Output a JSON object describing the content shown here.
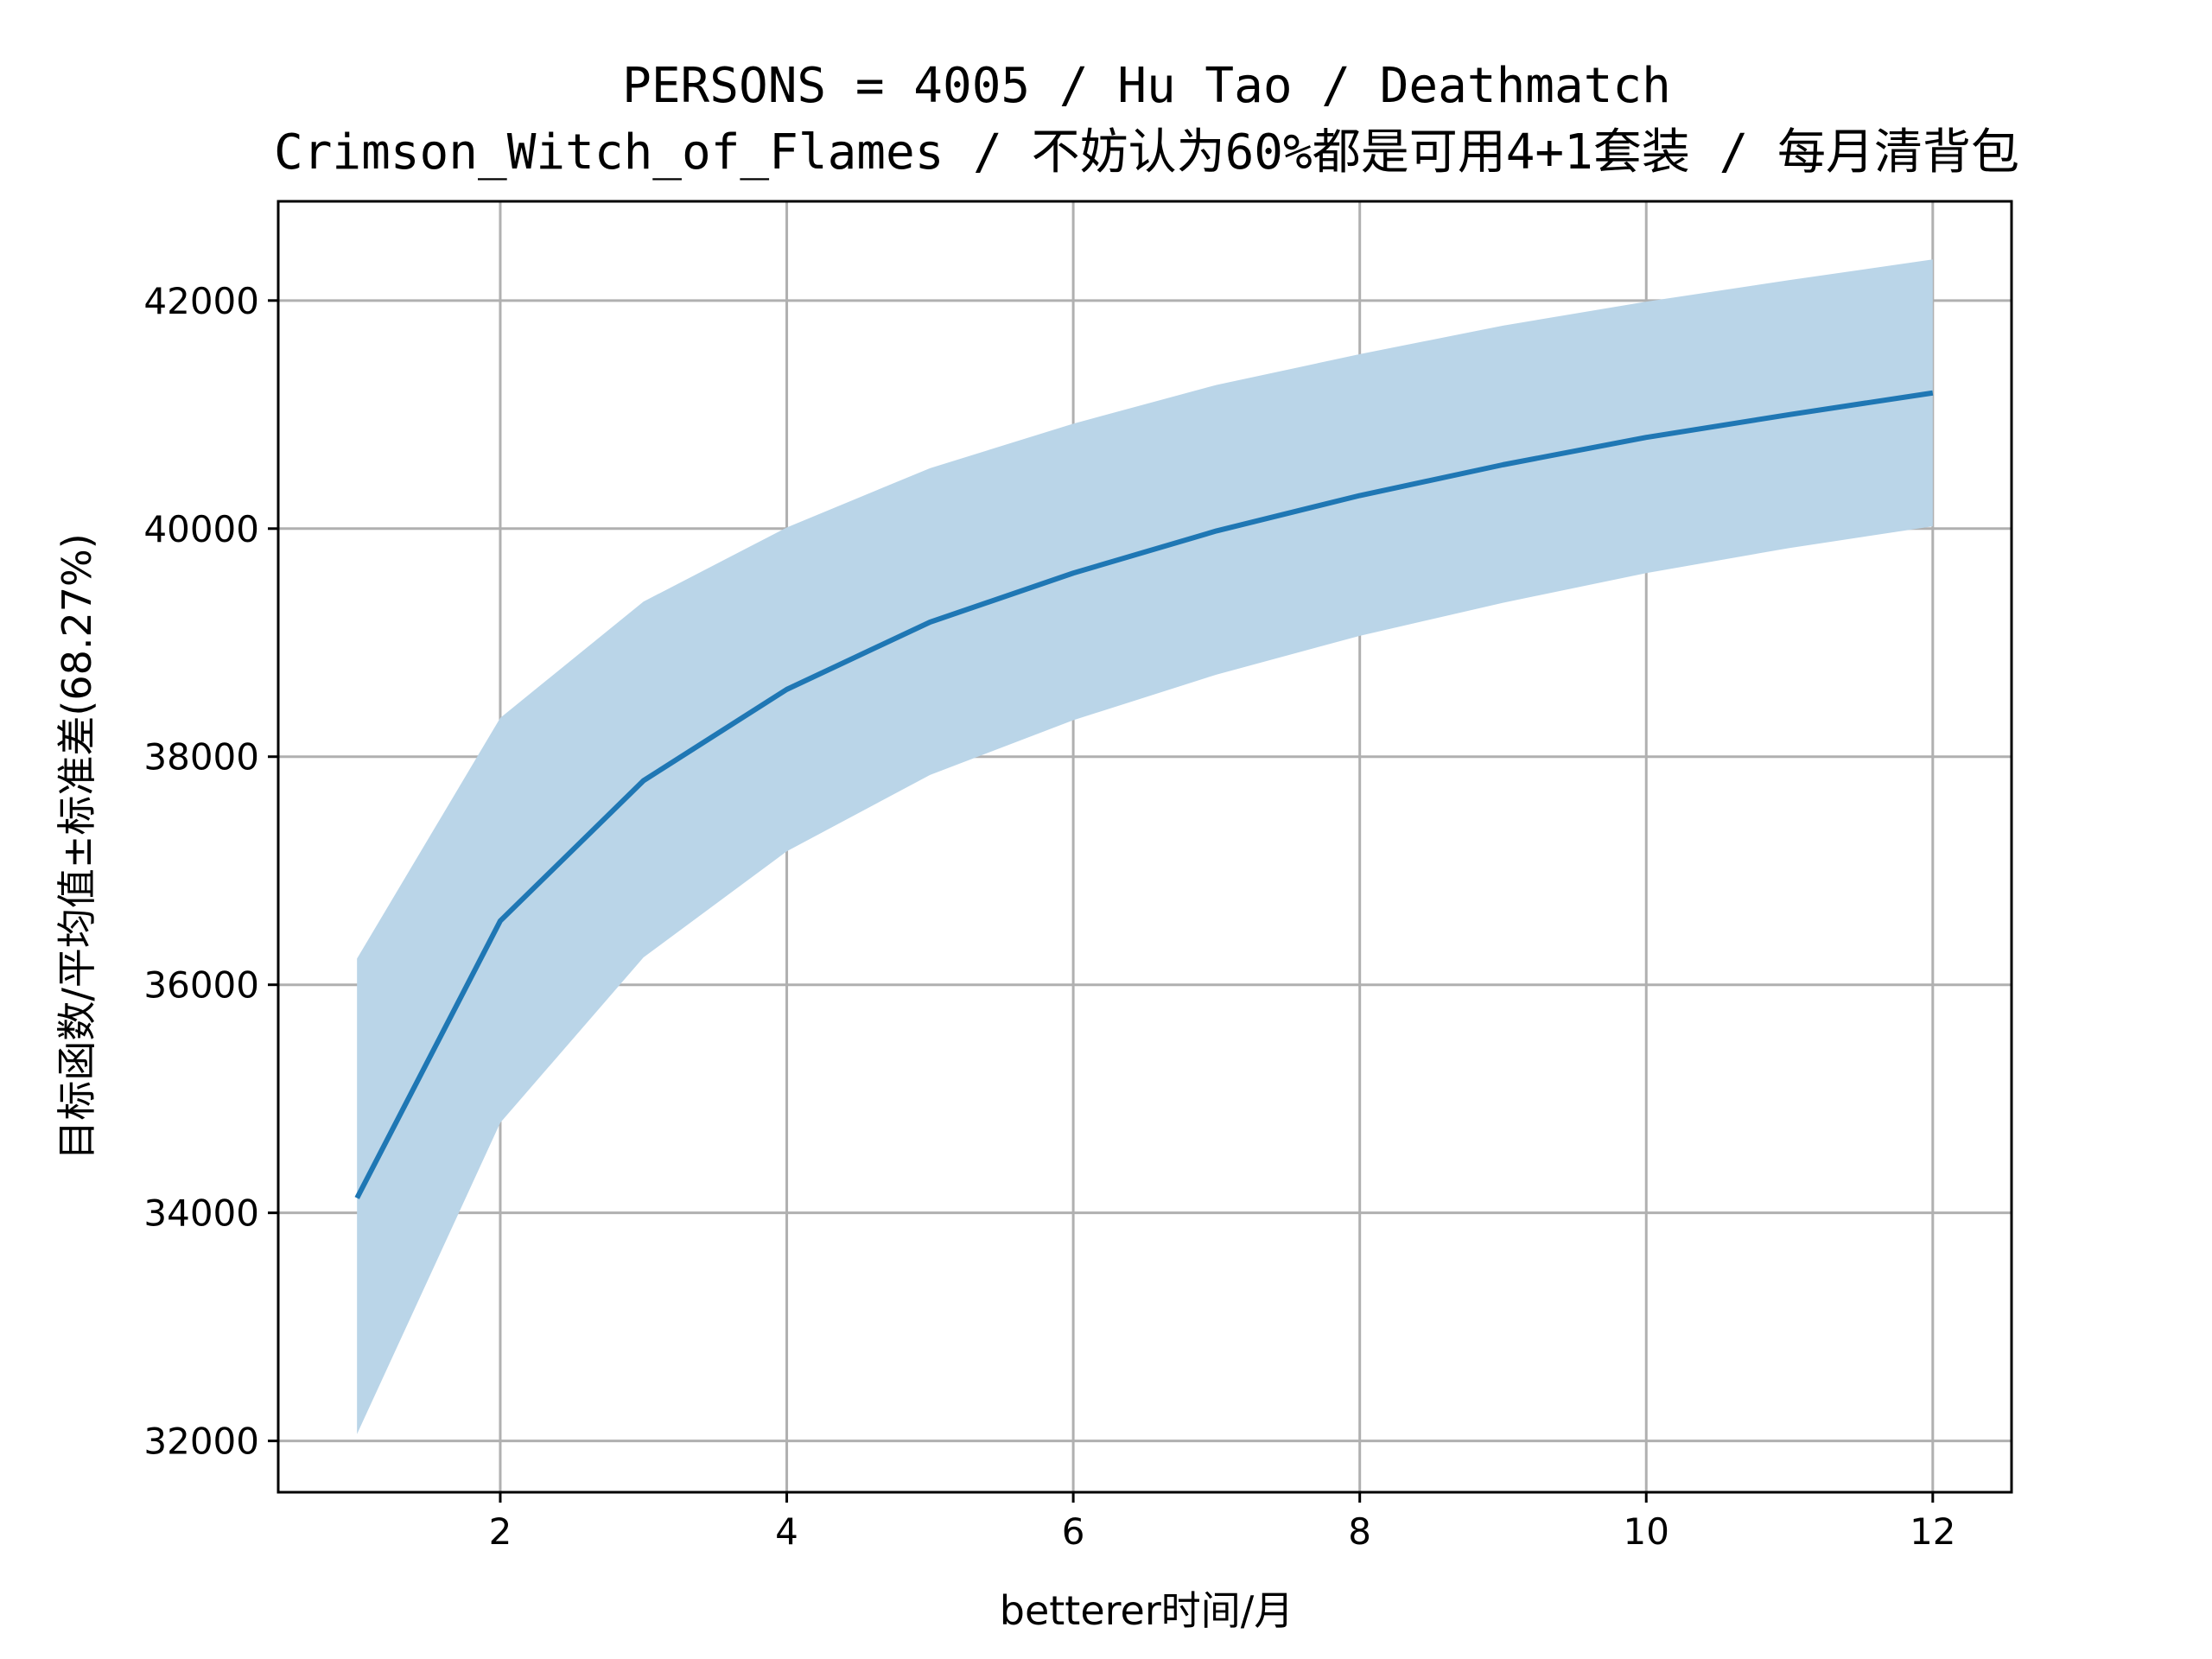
{
  "chart_data": {
    "type": "line",
    "title_line1": "PERSONS = 4005 / Hu Tao / Deathmatch",
    "title_line2": "Crimson_Witch_of_Flames / 不妨认为60%都是可用4+1套装 / 每月清背包",
    "xlabel": "betterer时间/月",
    "ylabel": "目标函数/平均值±标准差(68.27%)",
    "xlim": [
      0.45,
      12.55
    ],
    "ylim": [
      31550,
      42870
    ],
    "xticks": [
      2,
      4,
      6,
      8,
      10,
      12
    ],
    "yticks": [
      32000,
      34000,
      36000,
      38000,
      40000,
      42000
    ],
    "grid": true,
    "series": [
      {
        "x": [
          1,
          2,
          3,
          4,
          5,
          6,
          7,
          8,
          9,
          10,
          11,
          12
        ],
        "mean": [
          34130,
          36560,
          37790,
          38590,
          39180,
          39610,
          39980,
          40290,
          40560,
          40800,
          41000,
          41190
        ],
        "lower": [
          32060,
          34790,
          36240,
          37170,
          37840,
          38320,
          38720,
          39060,
          39350,
          39610,
          39830,
          40020
        ],
        "upper": [
          36230,
          38340,
          39360,
          40010,
          40530,
          40920,
          41260,
          41530,
          41780,
          41990,
          42180,
          42360
        ],
        "line_color": "#1f77b4",
        "band_color": "#bad5e8"
      }
    ]
  }
}
